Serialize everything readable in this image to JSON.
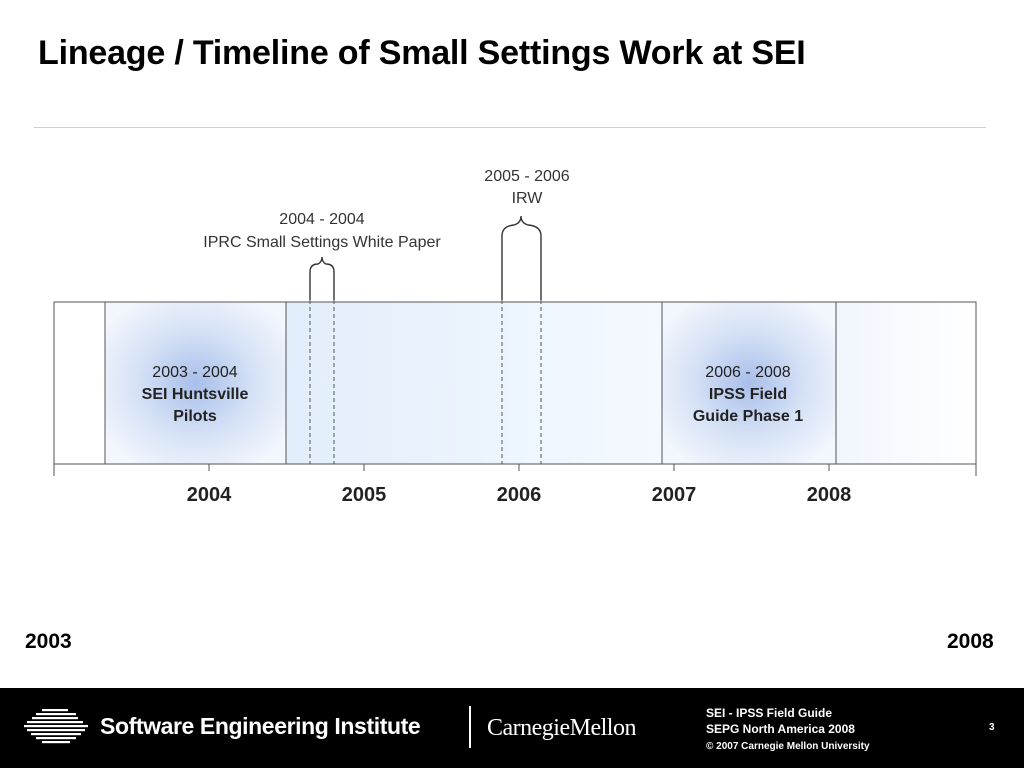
{
  "slide": {
    "title": "Lineage / Timeline of Small Settings Work at SEI",
    "range_start": "2003",
    "range_end": "2008"
  },
  "timeline": {
    "year_ticks": [
      "2004",
      "2005",
      "2006",
      "2007",
      "2008"
    ],
    "periods": [
      {
        "dates": "2003 - 2004",
        "name_lines": [
          "SEI Huntsville",
          "Pilots"
        ]
      },
      {
        "dates": "2006 - 2008",
        "name_lines": [
          "IPSS Field",
          "Guide Phase 1"
        ]
      }
    ],
    "callouts": [
      {
        "dates": "2004 - 2004",
        "name": "IPRC Small Settings White Paper"
      },
      {
        "dates": "2005 - 2006",
        "name": "IRW"
      }
    ]
  },
  "footer": {
    "org_name": "Software Engineering Institute",
    "university": "CarnegieMellon",
    "info_line1": "SEI - IPSS Field Guide",
    "info_line2": "SEPG North America 2008",
    "copyright": "© 2007 Carnegie Mellon University",
    "page_number": "3"
  }
}
